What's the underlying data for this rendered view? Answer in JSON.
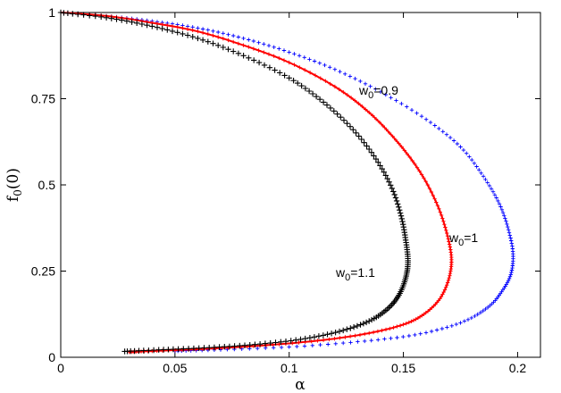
{
  "chart_data": {
    "type": "scatter",
    "title": "",
    "xlabel": "α",
    "ylabel_main": "f",
    "ylabel_sub": "0",
    "ylabel_suffix": "(0)",
    "xlim": [
      0,
      0.21
    ],
    "ylim": [
      0,
      1
    ],
    "x_ticks": [
      0,
      0.05,
      0.1,
      0.15,
      0.2
    ],
    "x_tick_labels": [
      "0",
      "0.05",
      "0.1",
      "0.15",
      "0.2"
    ],
    "y_ticks": [
      0,
      0.25,
      0.5,
      0.75,
      1
    ],
    "y_tick_labels": [
      "0",
      "0.25",
      "0.5",
      "0.75",
      "1"
    ],
    "grid": false,
    "series": [
      {
        "name": "w0=0.9",
        "label_main": "w",
        "label_sub": "0",
        "label_suffix": "=0.9",
        "color": "#0000ff",
        "marker": "plus-small",
        "points": [
          [
            0.0,
            1.0
          ],
          [
            0.02,
            0.99
          ],
          [
            0.04,
            0.975
          ],
          [
            0.06,
            0.955
          ],
          [
            0.08,
            0.925
          ],
          [
            0.1,
            0.885
          ],
          [
            0.12,
            0.835
          ],
          [
            0.14,
            0.77
          ],
          [
            0.16,
            0.69
          ],
          [
            0.175,
            0.61
          ],
          [
            0.185,
            0.525
          ],
          [
            0.192,
            0.445
          ],
          [
            0.196,
            0.37
          ],
          [
            0.198,
            0.3
          ],
          [
            0.197,
            0.24
          ],
          [
            0.193,
            0.19
          ],
          [
            0.187,
            0.145
          ],
          [
            0.175,
            0.1
          ],
          [
            0.155,
            0.065
          ],
          [
            0.13,
            0.045
          ],
          [
            0.1,
            0.03
          ],
          [
            0.07,
            0.022
          ],
          [
            0.05,
            0.018
          ]
        ]
      },
      {
        "name": "w0=1",
        "label_main": "w",
        "label_sub": "0",
        "label_suffix": "=1",
        "color": "#ff0000",
        "marker": "plus-small",
        "points": [
          [
            0.0,
            1.0
          ],
          [
            0.02,
            0.99
          ],
          [
            0.04,
            0.97
          ],
          [
            0.06,
            0.945
          ],
          [
            0.08,
            0.905
          ],
          [
            0.1,
            0.855
          ],
          [
            0.12,
            0.785
          ],
          [
            0.135,
            0.71
          ],
          [
            0.148,
            0.62
          ],
          [
            0.158,
            0.53
          ],
          [
            0.165,
            0.44
          ],
          [
            0.169,
            0.36
          ],
          [
            0.171,
            0.29
          ],
          [
            0.17,
            0.23
          ],
          [
            0.166,
            0.17
          ],
          [
            0.159,
            0.125
          ],
          [
            0.15,
            0.095
          ],
          [
            0.135,
            0.07
          ],
          [
            0.115,
            0.05
          ],
          [
            0.09,
            0.035
          ],
          [
            0.065,
            0.025
          ],
          [
            0.04,
            0.018
          ],
          [
            0.03,
            0.015
          ]
        ]
      },
      {
        "name": "w0=1.1",
        "label_main": "w",
        "label_sub": "0",
        "label_suffix": "=1.1",
        "color": "#000000",
        "marker": "plus",
        "points": [
          [
            0.0,
            1.0
          ],
          [
            0.02,
            0.985
          ],
          [
            0.04,
            0.96
          ],
          [
            0.06,
            0.925
          ],
          [
            0.08,
            0.875
          ],
          [
            0.1,
            0.81
          ],
          [
            0.115,
            0.74
          ],
          [
            0.128,
            0.66
          ],
          [
            0.138,
            0.575
          ],
          [
            0.145,
            0.49
          ],
          [
            0.149,
            0.41
          ],
          [
            0.151,
            0.34
          ],
          [
            0.152,
            0.28
          ],
          [
            0.151,
            0.23
          ],
          [
            0.148,
            0.18
          ],
          [
            0.143,
            0.14
          ],
          [
            0.135,
            0.105
          ],
          [
            0.122,
            0.075
          ],
          [
            0.105,
            0.052
          ],
          [
            0.085,
            0.037
          ],
          [
            0.065,
            0.028
          ],
          [
            0.045,
            0.022
          ],
          [
            0.028,
            0.017
          ]
        ]
      }
    ]
  }
}
